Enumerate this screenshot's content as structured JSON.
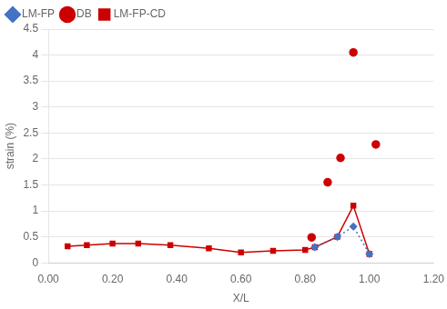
{
  "chart_data": {
    "type": "line",
    "xlabel": "X/L",
    "ylabel": "strain (%)",
    "xlim": [
      0.0,
      1.2
    ],
    "ylim": [
      0,
      4.5
    ],
    "xticks": [
      {
        "value": 0.0,
        "label": "0.00"
      },
      {
        "value": 0.2,
        "label": "0.20"
      },
      {
        "value": 0.4,
        "label": "0.40"
      },
      {
        "value": 0.6,
        "label": "0.60"
      },
      {
        "value": 0.8,
        "label": "0.80"
      },
      {
        "value": 1.0,
        "label": "1.00"
      },
      {
        "value": 1.2,
        "label": "1.20"
      }
    ],
    "yticks": [
      0,
      0.5,
      1,
      1.5,
      2,
      2.5,
      3,
      3.5,
      4,
      4.5
    ],
    "grid": "y",
    "legend": "upper left",
    "series": [
      {
        "name": "LM-FP",
        "color": "#4472c4",
        "marker": "diamond",
        "line_style": "dotted",
        "x": [
          0.83,
          0.9,
          0.95,
          1.0
        ],
        "values": [
          0.3,
          0.5,
          0.7,
          0.17
        ]
      },
      {
        "name": "DB",
        "color": "#cc0000",
        "marker": "circle",
        "line_style": "none",
        "x": [
          0.82,
          0.87,
          0.91,
          0.95,
          1.02
        ],
        "values": [
          0.49,
          1.55,
          2.02,
          4.05,
          2.28
        ]
      },
      {
        "name": "LM-FP-CD",
        "color": "#cc0000",
        "marker": "square",
        "line_style": "solid",
        "x": [
          0.06,
          0.12,
          0.2,
          0.28,
          0.38,
          0.5,
          0.6,
          0.7,
          0.8,
          0.83,
          0.9,
          0.95,
          1.0
        ],
        "values": [
          0.32,
          0.34,
          0.37,
          0.37,
          0.34,
          0.28,
          0.2,
          0.23,
          0.25,
          0.3,
          0.5,
          1.1,
          0.17
        ]
      }
    ]
  }
}
